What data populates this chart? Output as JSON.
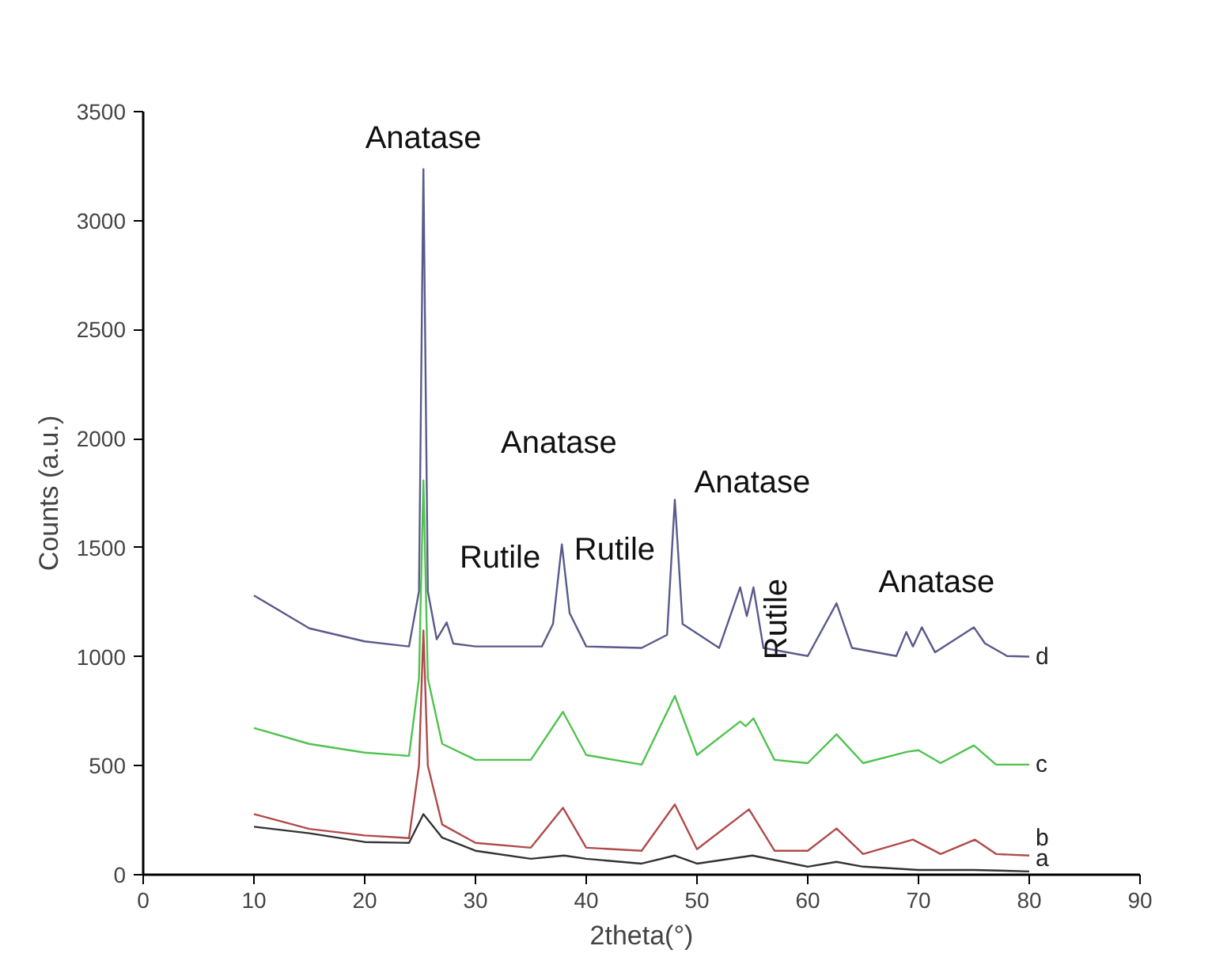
{
  "chart_data": {
    "type": "line",
    "xlabel": "2theta(°)",
    "ylabel": "Counts (a.u.)",
    "xlim": [
      0,
      90
    ],
    "xticks": [
      0,
      10,
      20,
      30,
      40,
      50,
      60,
      70,
      80,
      90
    ],
    "ylim": [
      0,
      3500
    ],
    "yticks": [
      0,
      500,
      1000,
      1500,
      2000,
      2500,
      3000,
      3500
    ],
    "grid": false,
    "legend": false,
    "marker": "none",
    "line_style": "solid",
    "series": [
      {
        "name": "a",
        "color": "#333333",
        "x": [
          10,
          15,
          20,
          24,
          25.3,
          27,
          30,
          35,
          38,
          40,
          45,
          48,
          50,
          55,
          60,
          62.6,
          65,
          70,
          75,
          80
        ],
        "values": [
          220,
          190,
          150,
          146,
          278,
          170,
          110,
          73,
          88,
          73,
          51,
          88,
          51,
          88,
          37,
          59,
          37,
          22,
          22,
          15
        ]
      },
      {
        "name": "b",
        "color": "#b04a4a",
        "x": [
          10,
          15,
          20,
          24,
          24.9,
          25.3,
          25.7,
          27,
          30,
          35,
          37.9,
          40,
          45,
          48,
          50,
          54.7,
          57,
          60,
          62.6,
          65,
          69.5,
          72,
          75.1,
          77,
          80
        ],
        "values": [
          278,
          210,
          180,
          168,
          500,
          1120,
          500,
          230,
          146,
          124,
          307,
          124,
          110,
          322,
          117,
          300,
          110,
          110,
          212,
          95,
          161,
          95,
          161,
          95,
          88
        ]
      },
      {
        "name": "c",
        "color": "#4fc34f",
        "x": [
          10,
          15,
          20,
          24,
          24.9,
          25.3,
          25.7,
          27,
          30,
          35,
          37.9,
          40,
          45,
          48,
          50,
          53.9,
          54.4,
          55.1,
          57,
          60,
          62.6,
          65,
          69,
          70,
          72,
          75,
          77,
          80
        ],
        "values": [
          673,
          600,
          560,
          545,
          900,
          1808,
          900,
          600,
          527,
          527,
          747,
          549,
          505,
          820,
          549,
          703,
          681,
          717,
          527,
          512,
          644,
          512,
          564,
          571,
          512,
          593,
          505,
          505
        ]
      },
      {
        "name": "d",
        "color": "#5a5a8c",
        "x": [
          10,
          15,
          20,
          24,
          24.9,
          25.3,
          25.7,
          26.5,
          27.4,
          28,
          30,
          36,
          37,
          37.8,
          38.5,
          40,
          45,
          47.3,
          48,
          48.7,
          52,
          53.9,
          54.5,
          55.1,
          56,
          60,
          62.6,
          64,
          68,
          68.9,
          69.5,
          70.3,
          71.5,
          75,
          76,
          78,
          80
        ],
        "values": [
          1281,
          1130,
          1070,
          1047,
          1300,
          3236,
          1300,
          1080,
          1157,
          1060,
          1047,
          1047,
          1150,
          1515,
          1200,
          1047,
          1040,
          1100,
          1720,
          1150,
          1040,
          1318,
          1186,
          1318,
          1040,
          1003,
          1245,
          1040,
          1003,
          1113,
          1047,
          1135,
          1020,
          1135,
          1061,
          1003,
          1000
        ]
      }
    ],
    "annotations": [
      "Anatase",
      "Anatase",
      "Rutile",
      "Rutile",
      "Anatase",
      "Rutile",
      "Anatase"
    ]
  }
}
